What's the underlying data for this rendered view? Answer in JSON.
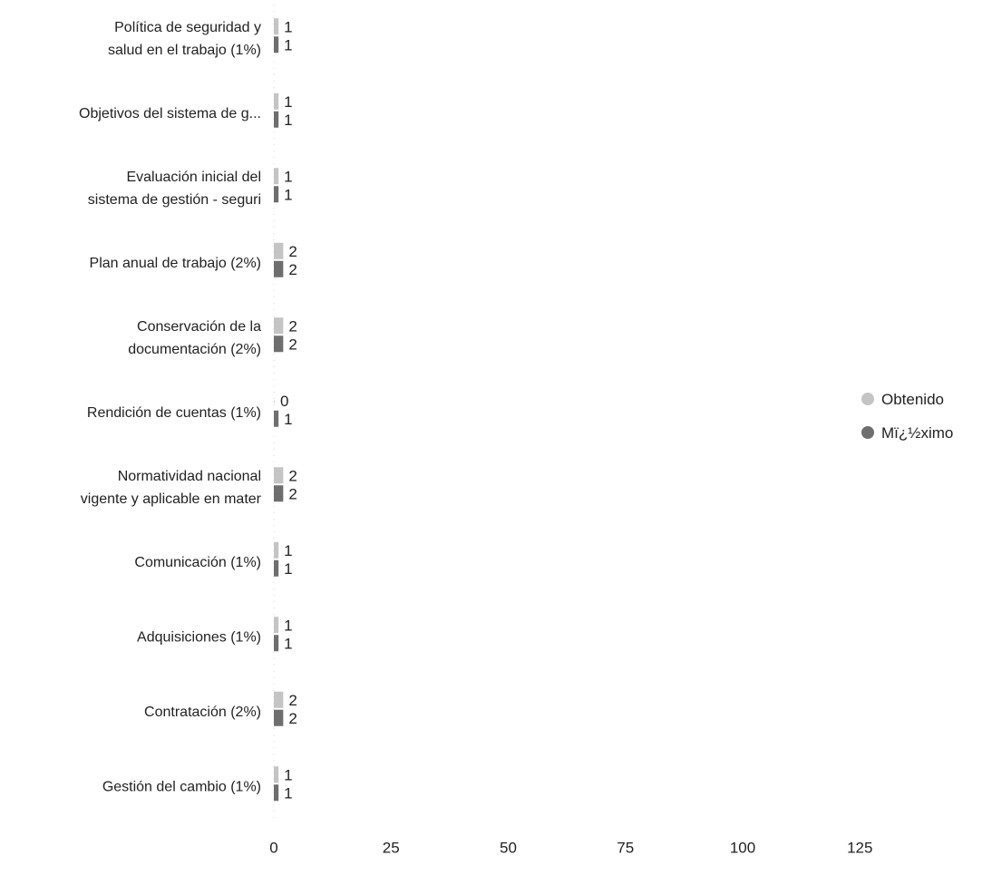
{
  "chart_data": {
    "type": "bar",
    "orientation": "horizontal",
    "title": "",
    "xlabel": "",
    "ylabel": "",
    "xlim": [
      0,
      125
    ],
    "ticks": [
      0,
      25,
      50,
      75,
      100,
      125
    ],
    "grid": false,
    "legend_position": "right",
    "categories": [
      [
        "Política de seguridad y",
        "salud en el trabajo (1%)"
      ],
      [
        "Objetivos del sistema de g..."
      ],
      [
        "Evaluación inicial del",
        "sistema de gestión - seguri"
      ],
      [
        "Plan anual de trabajo (2%)"
      ],
      [
        "Conservación de la",
        "documentación (2%)"
      ],
      [
        "Rendición de cuentas (1%)"
      ],
      [
        "Normatividad nacional",
        "vigente y aplicable en mater"
      ],
      [
        "Comunicación (1%)"
      ],
      [
        "Adquisiciones (1%)"
      ],
      [
        "Contratación (2%)"
      ],
      [
        "Gestión del cambio (1%)"
      ]
    ],
    "series": [
      {
        "name": "Obtenido",
        "color": "#c4c4c4",
        "values": [
          1,
          1,
          1,
          2,
          2,
          0,
          2,
          1,
          1,
          2,
          1
        ]
      },
      {
        "name": "Mï¿½ximo",
        "color": "#6e6e6e",
        "values": [
          1,
          1,
          1,
          2,
          2,
          1,
          2,
          1,
          1,
          2,
          1
        ]
      }
    ]
  }
}
